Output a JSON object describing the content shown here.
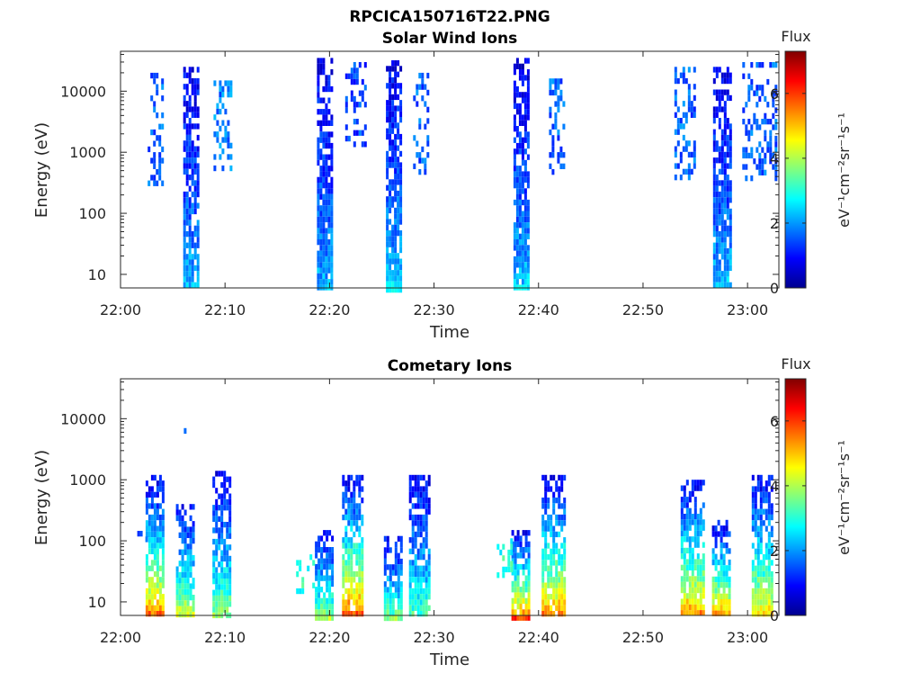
{
  "figure": {
    "title": "RPCICA150716T22.PNG"
  },
  "chart_data": [
    {
      "type": "heatmap",
      "title": "Solar Wind Ions",
      "xlabel": "Time",
      "ylabel": "Energy (eV)",
      "x_tick_labels": [
        "22:00",
        "22:10",
        "22:20",
        "22:30",
        "22:40",
        "22:50",
        "23:00"
      ],
      "x_ticks_minutes": [
        0,
        10,
        20,
        30,
        40,
        50,
        60
      ],
      "x_range_minutes": [
        0,
        63
      ],
      "y_scale": "log",
      "y_tick_labels": [
        "10",
        "100",
        "1000",
        "10000"
      ],
      "y_ticks": [
        10,
        100,
        1000,
        10000
      ],
      "y_range": [
        6,
        45000
      ],
      "colorbar": {
        "title": "Flux",
        "label": "eV⁻¹cm⁻²sr⁻¹s⁻¹",
        "tick_labels": [
          "0",
          "2",
          "4",
          "6"
        ],
        "ticks": [
          0,
          2,
          4,
          6
        ],
        "range": [
          0,
          7.3
        ]
      },
      "bursts": [
        {
          "start_min": 6.0,
          "end_min": 7.3,
          "e_low": 6,
          "e_high": 25000,
          "flux_low_energy": 2.5,
          "flux_high_energy": 0.8
        },
        {
          "start_min": 18.8,
          "end_min": 20.1,
          "e_low": 6,
          "e_high": 35000,
          "flux_low_energy": 2.4,
          "flux_high_energy": 0.8
        },
        {
          "start_min": 25.4,
          "end_min": 26.8,
          "e_low": 6,
          "e_high": 32000,
          "flux_low_energy": 2.6,
          "flux_high_energy": 0.8
        },
        {
          "start_min": 37.6,
          "end_min": 39.0,
          "e_low": 6,
          "e_high": 35000,
          "flux_low_energy": 2.6,
          "flux_high_energy": 0.7
        },
        {
          "start_min": 56.7,
          "end_min": 58.3,
          "e_low": 6,
          "e_high": 25000,
          "flux_low_energy": 2.5,
          "flux_high_energy": 0.8
        }
      ],
      "sparse_patches": [
        {
          "start_min": 2.6,
          "end_min": 4.0,
          "e_low": 300,
          "e_high": 20000,
          "flux": 1.6
        },
        {
          "start_min": 8.9,
          "end_min": 10.6,
          "e_low": 500,
          "e_high": 15000,
          "flux": 1.8
        },
        {
          "start_min": 21.5,
          "end_min": 23.5,
          "e_low": 1500,
          "e_high": 30000,
          "flux": 1.4
        },
        {
          "start_min": 28.0,
          "end_min": 29.5,
          "e_low": 400,
          "e_high": 20000,
          "flux": 1.6
        },
        {
          "start_min": 41.0,
          "end_min": 42.5,
          "e_low": 500,
          "e_high": 20000,
          "flux": 1.6
        },
        {
          "start_min": 53.0,
          "end_min": 55.0,
          "e_low": 400,
          "e_high": 25000,
          "flux": 1.6
        },
        {
          "start_min": 59.5,
          "end_min": 62.6,
          "e_low": 400,
          "e_high": 30000,
          "flux": 1.6
        }
      ]
    },
    {
      "type": "heatmap",
      "title": "Cometary Ions",
      "xlabel": "Time",
      "ylabel": "Energy (eV)",
      "x_tick_labels": [
        "22:00",
        "22:10",
        "22:20",
        "22:30",
        "22:40",
        "22:50",
        "23:00"
      ],
      "x_ticks_minutes": [
        0,
        10,
        20,
        30,
        40,
        50,
        60
      ],
      "x_range_minutes": [
        0,
        63
      ],
      "y_scale": "log",
      "y_tick_labels": [
        "10",
        "100",
        "1000",
        "10000"
      ],
      "y_ticks": [
        10,
        100,
        1000,
        10000
      ],
      "y_range": [
        6,
        45000
      ],
      "colorbar": {
        "title": "Flux",
        "label": "eV⁻¹cm⁻²sr⁻¹s⁻¹",
        "tick_labels": [
          "0",
          "2",
          "4",
          "6"
        ],
        "ticks": [
          0,
          2,
          4,
          6
        ],
        "range": [
          0,
          7.3
        ]
      },
      "bursts": [
        {
          "start_min": 2.4,
          "end_min": 4.0,
          "e_low": 6,
          "e_high": 1200,
          "flux_low_energy": 6.3,
          "flux_high_energy": 0.8
        },
        {
          "start_min": 5.3,
          "end_min": 7.0,
          "e_low": 6,
          "e_high": 400,
          "flux_low_energy": 4.8,
          "flux_high_energy": 1.0
        },
        {
          "start_min": 8.8,
          "end_min": 10.6,
          "e_low": 6,
          "e_high": 1400,
          "flux_low_energy": 4.2,
          "flux_high_energy": 0.8
        },
        {
          "start_min": 18.6,
          "end_min": 20.2,
          "e_low": 6,
          "e_high": 150,
          "flux_low_energy": 4.2,
          "flux_high_energy": 0.9
        },
        {
          "start_min": 21.2,
          "end_min": 23.2,
          "e_low": 6,
          "e_high": 1200,
          "flux_low_energy": 6.6,
          "flux_high_energy": 0.9
        },
        {
          "start_min": 25.2,
          "end_min": 26.8,
          "e_low": 6,
          "e_high": 120,
          "flux_low_energy": 3.9,
          "flux_high_energy": 0.9
        },
        {
          "start_min": 27.6,
          "end_min": 29.5,
          "e_low": 6,
          "e_high": 1200,
          "flux_low_energy": 3.6,
          "flux_high_energy": 0.9
        },
        {
          "start_min": 37.4,
          "end_min": 39.2,
          "e_low": 6,
          "e_high": 150,
          "flux_low_energy": 6.3,
          "flux_high_energy": 0.9
        },
        {
          "start_min": 40.3,
          "end_min": 42.5,
          "e_low": 6,
          "e_high": 1200,
          "flux_low_energy": 6.1,
          "flux_high_energy": 0.9
        },
        {
          "start_min": 53.6,
          "end_min": 55.7,
          "e_low": 6,
          "e_high": 1000,
          "flux_low_energy": 6.1,
          "flux_high_energy": 0.9
        },
        {
          "start_min": 56.6,
          "end_min": 58.3,
          "e_low": 6,
          "e_high": 220,
          "flux_low_energy": 6.1,
          "flux_high_energy": 0.9
        },
        {
          "start_min": 60.4,
          "end_min": 62.4,
          "e_low": 6,
          "e_high": 1200,
          "flux_low_energy": 5.4,
          "flux_high_energy": 0.9
        }
      ],
      "sparse_patches": [
        {
          "start_min": 5.8,
          "end_min": 6.2,
          "e_low": 6000,
          "e_high": 7000,
          "flux": 2.0
        },
        {
          "start_min": 1.6,
          "end_min": 2.4,
          "e_low": 100,
          "e_high": 180,
          "flux": 1.7
        },
        {
          "start_min": 16.8,
          "end_min": 18.4,
          "e_low": 15,
          "e_high": 60,
          "flux": 3.0
        },
        {
          "start_min": 36.0,
          "end_min": 37.4,
          "e_low": 30,
          "e_high": 110,
          "flux": 3.0
        }
      ]
    }
  ]
}
